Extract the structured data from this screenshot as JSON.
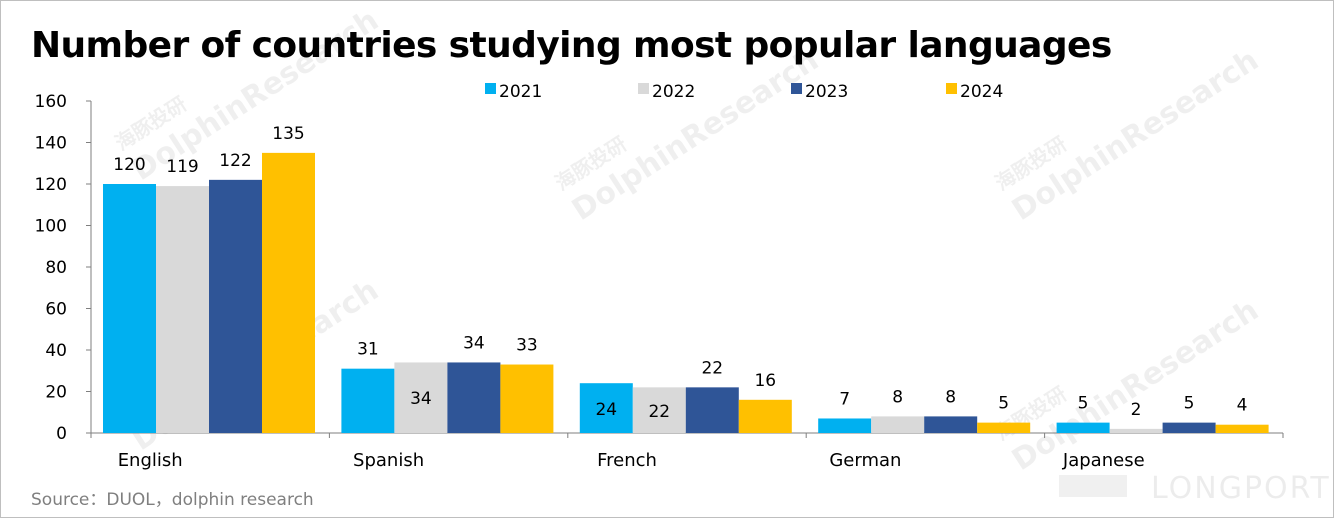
{
  "title": "Number of countries studying most popular languages",
  "source": "Source：DUOL，dolphin research",
  "watermark": {
    "cn": "海豚投研",
    "en": "DolphinResearch",
    "brand": "LONGPORT"
  },
  "chart_data": {
    "type": "bar",
    "title": "Number of countries studying most popular languages",
    "xlabel": "",
    "ylabel": "",
    "ylim": [
      0,
      160
    ],
    "yticks": [
      0,
      20,
      40,
      60,
      80,
      100,
      120,
      140,
      160
    ],
    "categories": [
      "English",
      "Spanish",
      "French",
      "German",
      "Japanese"
    ],
    "series": [
      {
        "name": "2021",
        "color": "#00b0f0",
        "values": [
          120,
          31,
          24,
          7,
          5
        ]
      },
      {
        "name": "2022",
        "color": "#d9d9d9",
        "values": [
          119,
          34,
          22,
          8,
          2
        ]
      },
      {
        "name": "2023",
        "color": "#2f5597",
        "values": [
          122,
          34,
          22,
          8,
          5
        ]
      },
      {
        "name": "2024",
        "color": "#ffc000",
        "values": [
          135,
          33,
          16,
          5,
          4
        ]
      }
    ],
    "grid": false,
    "legend": "top"
  }
}
